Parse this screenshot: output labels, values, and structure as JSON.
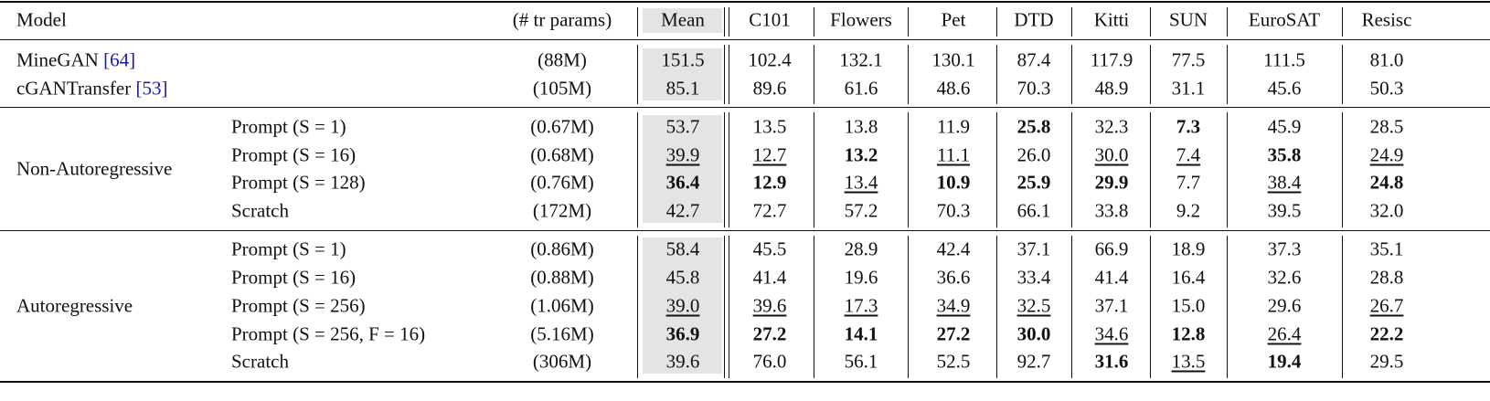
{
  "table": {
    "header": [
      "Model",
      "(# tr params)",
      "Mean",
      "C101",
      "Flowers",
      "Pet",
      "DTD",
      "Kitti",
      "SUN",
      "EuroSAT",
      "Resisc"
    ],
    "groups": [
      {
        "rows": [
          {
            "model": "MineGAN",
            "ref": "[64]",
            "params": "(88M)",
            "values": [
              "151.5",
              "102.4",
              "132.1",
              "130.1",
              "87.4",
              "117.9",
              "77.5",
              "111.5",
              "81.0"
            ]
          },
          {
            "model": "cGANTransfer",
            "ref": "[53]",
            "params": "(105M)",
            "values": [
              "85.1",
              "89.6",
              "61.6",
              "48.6",
              "70.3",
              "48.9",
              "31.1",
              "45.6",
              "50.3"
            ]
          }
        ]
      },
      {
        "label": "Non-Autoregressive",
        "rows": [
          {
            "model": "Prompt (S = 1)",
            "params": "(0.67M)",
            "values": [
              "53.7",
              "13.5",
              "13.8",
              "11.9",
              "25.8",
              "32.3",
              "7.3",
              "45.9",
              "28.5"
            ],
            "bold": [
              4,
              6
            ]
          },
          {
            "model": "Prompt (S = 16)",
            "params": "(0.68M)",
            "values": [
              "39.9",
              "12.7",
              "13.2",
              "11.1",
              "26.0",
              "30.0",
              "7.4",
              "35.8",
              "24.9"
            ],
            "bold": [
              2,
              7
            ],
            "underline": [
              0,
              1,
              3,
              5,
              6,
              8
            ]
          },
          {
            "model": "Prompt (S = 128)",
            "params": "(0.76M)",
            "values": [
              "36.4",
              "12.9",
              "13.4",
              "10.9",
              "25.9",
              "29.9",
              "7.7",
              "38.4",
              "24.8"
            ],
            "bold": [
              0,
              1,
              3,
              4,
              5,
              8
            ],
            "underline": [
              2,
              7
            ]
          },
          {
            "model": "Scratch",
            "params": "(172M)",
            "values": [
              "42.7",
              "72.7",
              "57.2",
              "70.3",
              "66.1",
              "33.8",
              "9.2",
              "39.5",
              "32.0"
            ]
          }
        ]
      },
      {
        "label": "Autoregressive",
        "rows": [
          {
            "model": "Prompt (S = 1)",
            "params": "(0.86M)",
            "values": [
              "58.4",
              "45.5",
              "28.9",
              "42.4",
              "37.1",
              "66.9",
              "18.9",
              "37.3",
              "35.1"
            ]
          },
          {
            "model": "Prompt (S = 16)",
            "params": "(0.88M)",
            "values": [
              "45.8",
              "41.4",
              "19.6",
              "36.6",
              "33.4",
              "41.4",
              "16.4",
              "32.6",
              "28.8"
            ]
          },
          {
            "model": "Prompt (S = 256)",
            "params": "(1.06M)",
            "values": [
              "39.0",
              "39.6",
              "17.3",
              "34.9",
              "32.5",
              "37.1",
              "15.0",
              "29.6",
              "26.7"
            ],
            "underline": [
              0,
              1,
              2,
              3,
              4,
              8
            ]
          },
          {
            "model": "Prompt (S = 256, F = 16)",
            "params": "(5.16M)",
            "values": [
              "36.9",
              "27.2",
              "14.1",
              "27.2",
              "30.0",
              "34.6",
              "12.8",
              "26.4",
              "22.2"
            ],
            "bold": [
              0,
              1,
              2,
              3,
              4,
              6,
              8
            ],
            "underline": [
              5,
              7
            ]
          },
          {
            "model": "Scratch",
            "params": "(306M)",
            "values": [
              "39.6",
              "76.0",
              "56.1",
              "52.5",
              "92.7",
              "31.6",
              "13.5",
              "19.4",
              "29.5"
            ],
            "bold": [
              5,
              7
            ],
            "underline": [
              6
            ]
          }
        ]
      }
    ]
  }
}
